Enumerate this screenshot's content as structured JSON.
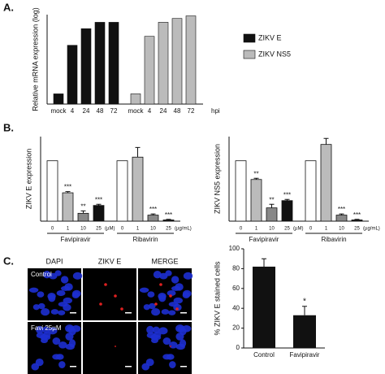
{
  "panel_labels": [
    "A.",
    "B.",
    "C."
  ],
  "chart_data": [
    {
      "type": "bar",
      "y_label": "Relative mRNA expression (log)",
      "x_unit": "hpi",
      "categories": [
        "mock",
        "4",
        "24",
        "48",
        "72"
      ],
      "series": [
        {
          "name": "ZIKV E",
          "color": "#111111",
          "values": [
            0.8,
            4.6,
            5.9,
            6.4,
            6.4
          ]
        },
        {
          "name": "ZIKV NS5",
          "color": "#bbbbbb",
          "values": [
            0.8,
            5.3,
            6.4,
            6.7,
            6.9
          ]
        }
      ],
      "ylim": [
        0,
        7
      ]
    },
    {
      "type": "bar",
      "y_label": "ZIKV E expression",
      "colors": [
        "#ffffff",
        "#bbbbbb",
        "#888888",
        "#111111"
      ],
      "groups": [
        {
          "name": "Favipiravir",
          "unit": "(µM)",
          "categories": [
            "0",
            "1",
            "10",
            "25"
          ],
          "values": [
            1.0,
            0.47,
            0.13,
            0.26
          ],
          "errors": [
            0,
            0.02,
            0.04,
            0.02
          ],
          "significance": [
            null,
            "***",
            "**",
            "***"
          ]
        },
        {
          "name": "Ribavirin",
          "unit": "(µg/mL)",
          "categories": [
            "0",
            "1",
            "10",
            "25"
          ],
          "values": [
            1.0,
            1.06,
            0.1,
            0.02
          ],
          "errors": [
            0,
            0.16,
            0.02,
            0.01
          ],
          "significance": [
            null,
            null,
            "***",
            "***"
          ]
        }
      ],
      "ylim": [
        0,
        1.4
      ]
    },
    {
      "type": "bar",
      "y_label": "ZIKV NS5 expression",
      "colors": [
        "#ffffff",
        "#bbbbbb",
        "#888888",
        "#111111"
      ],
      "groups": [
        {
          "name": "Favipiravir",
          "unit": "(µM)",
          "categories": [
            "0",
            "1",
            "10",
            "25"
          ],
          "values": [
            1.0,
            0.69,
            0.22,
            0.34
          ],
          "errors": [
            0,
            0.02,
            0.06,
            0.02
          ],
          "significance": [
            null,
            "**",
            "**",
            "***"
          ]
        },
        {
          "name": "Ribavirin",
          "unit": "(µg/mL)",
          "categories": [
            "0",
            "1",
            "10",
            "25"
          ],
          "values": [
            1.0,
            1.27,
            0.1,
            0.02
          ],
          "errors": [
            0,
            0.1,
            0.02,
            0.01
          ],
          "significance": [
            null,
            null,
            "***",
            "***"
          ]
        }
      ],
      "ylim": [
        0,
        1.4
      ]
    },
    {
      "type": "bar",
      "y_label": "% ZIKV E stained cells",
      "categories": [
        "Control",
        "Favipiravir"
      ],
      "values": [
        82,
        33
      ],
      "errors": [
        8,
        9
      ],
      "significance": [
        null,
        "*"
      ],
      "color": "#111111",
      "ylim": [
        0,
        100
      ],
      "yticks": [
        0,
        20,
        40,
        60,
        80,
        100
      ]
    }
  ],
  "image_panel": {
    "columns": [
      "DAPI",
      "ZIKV E",
      "MERGE"
    ],
    "rows": [
      "Control",
      "Favi 25µM"
    ]
  }
}
